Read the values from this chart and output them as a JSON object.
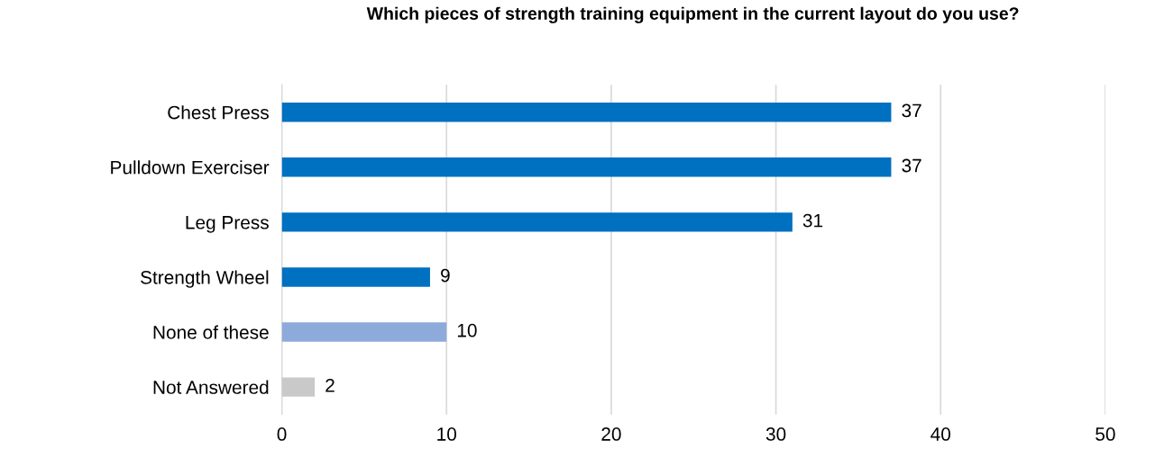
{
  "chart_data": {
    "type": "bar",
    "orientation": "horizontal",
    "title": "Which pieces of strength training equipment in the current layout do you use?",
    "categories": [
      "Chest Press",
      "Pulldown Exerciser",
      "Leg Press",
      "Strength Wheel",
      "None of these",
      "Not Answered"
    ],
    "values": [
      37,
      37,
      31,
      9,
      10,
      2
    ],
    "colors": [
      "#0070c0",
      "#0070c0",
      "#0070c0",
      "#0070c0",
      "#8eaadb",
      "#c9c9c9"
    ],
    "xlim": [
      0,
      50
    ],
    "xticks": [
      0,
      10,
      20,
      30,
      40,
      50
    ],
    "grid": "x",
    "data_labels": true
  }
}
